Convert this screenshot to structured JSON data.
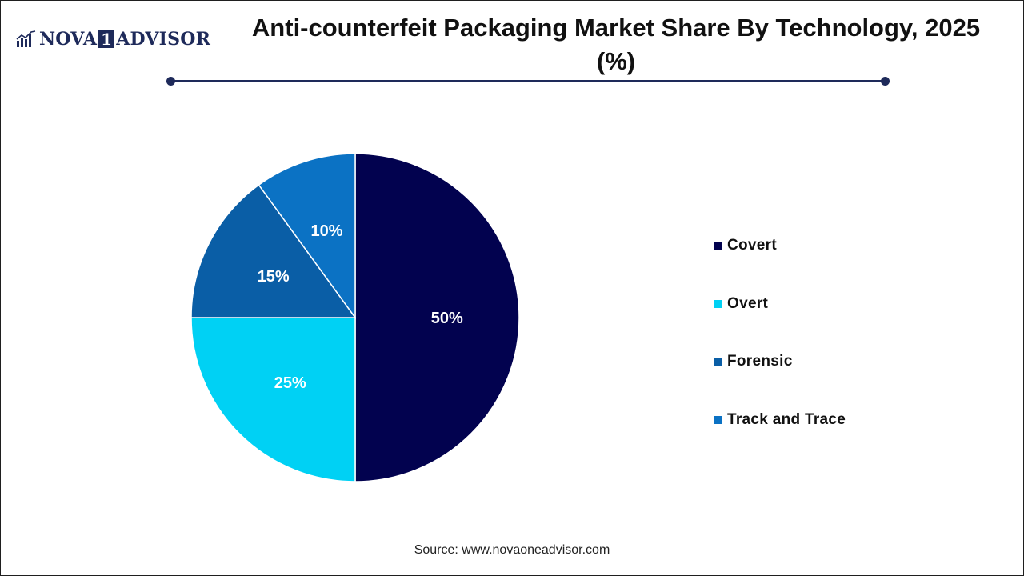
{
  "brand": {
    "name_part1": "NOVA",
    "name_part2": "1",
    "name_part3": "ADVISOR",
    "color": "#1e2a5a"
  },
  "chart_data": {
    "type": "pie",
    "title": "Anti-counterfeit Packaging Market Share By Technology, 2025 (%)",
    "categories": [
      "Covert",
      "Overt",
      "Forensic",
      "Track and Trace"
    ],
    "values": [
      50,
      25,
      15,
      10
    ],
    "data_labels": [
      "50%",
      "25%",
      "15%",
      "10%"
    ],
    "colors": [
      "#02024f",
      "#00d1f4",
      "#0a5ea6",
      "#0b72c4"
    ],
    "start_angle": "12 o'clock, clockwise",
    "legend_position": "right"
  },
  "source": "Source: www.novaoneadvisor.com"
}
